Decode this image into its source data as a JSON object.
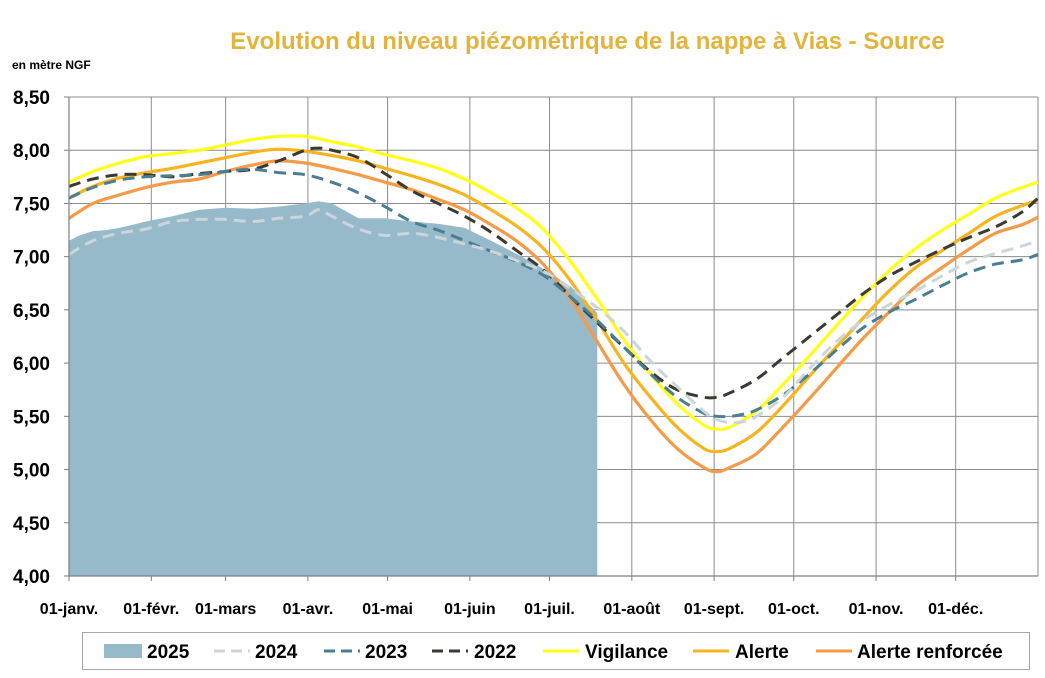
{
  "chart_data": {
    "type": "line",
    "title": "Evolution du niveau piézométrique  de la nappe à Vias  - Source",
    "ylabel": "en mètre NGF",
    "ylim": [
      4.0,
      8.5
    ],
    "y_ticks": [
      "4,00",
      "4,50",
      "5,00",
      "5,50",
      "6,00",
      "6,50",
      "7,00",
      "7,50",
      "8,00",
      "8,50"
    ],
    "x_ticks": [
      "01-janv.",
      "01-févr.",
      "01-mars",
      "01-avr.",
      "01-mai",
      "01-juin",
      "01-juil.",
      "01-août",
      "01-sept.",
      "01-oct.",
      "01-nov.",
      "01-déc."
    ],
    "x_tick_days": [
      1,
      32,
      60,
      91,
      121,
      152,
      182,
      213,
      244,
      274,
      305,
      335
    ],
    "xlim": [
      1,
      366
    ],
    "grid": true,
    "legend_position": "bottom",
    "colors": {
      "title": "#E3B33B",
      "s2025": "#97BACB",
      "s2024": "#CBD5DA",
      "s2023": "#4A7E92",
      "s2022": "#3C3A30",
      "vigilance": "#FFFF1A",
      "alerte": "#F7B41E",
      "alerte_renforcee": "#F59A46"
    },
    "series": [
      {
        "name": "2025",
        "style": "area",
        "color": "#97BACB",
        "x": [
          1,
          5,
          10,
          15,
          20,
          30,
          40,
          50,
          60,
          70,
          80,
          90,
          95,
          100,
          110,
          120,
          130,
          140,
          150,
          160,
          170,
          180,
          190,
          200
        ],
        "y": [
          7.15,
          7.2,
          7.24,
          7.25,
          7.27,
          7.33,
          7.38,
          7.44,
          7.46,
          7.45,
          7.47,
          7.5,
          7.52,
          7.5,
          7.36,
          7.36,
          7.33,
          7.31,
          7.27,
          7.15,
          7.02,
          6.88,
          6.72,
          6.47
        ]
      },
      {
        "name": "2024",
        "style": "dash",
        "color": "#CBD5DA",
        "x": [
          1,
          10,
          20,
          30,
          40,
          50,
          60,
          70,
          80,
          90,
          95,
          100,
          110,
          120,
          130,
          140,
          150,
          160,
          170,
          180,
          190,
          200,
          210,
          220,
          230,
          240,
          245,
          250,
          255,
          260,
          270,
          280,
          290,
          300,
          310,
          320,
          330,
          340,
          350,
          360,
          366
        ],
        "y": [
          7.02,
          7.15,
          7.22,
          7.26,
          7.33,
          7.35,
          7.35,
          7.33,
          7.36,
          7.38,
          7.44,
          7.38,
          7.26,
          7.2,
          7.22,
          7.18,
          7.12,
          7.05,
          6.96,
          6.86,
          6.7,
          6.52,
          6.3,
          6.02,
          5.78,
          5.55,
          5.47,
          5.44,
          5.45,
          5.5,
          5.68,
          5.95,
          6.2,
          6.4,
          6.55,
          6.68,
          6.82,
          6.95,
          7.03,
          7.1,
          7.15
        ]
      },
      {
        "name": "2023",
        "style": "dash",
        "color": "#4A7E92",
        "x": [
          1,
          10,
          20,
          30,
          40,
          50,
          60,
          70,
          80,
          90,
          100,
          110,
          120,
          130,
          140,
          150,
          160,
          170,
          180,
          190,
          200,
          210,
          220,
          230,
          240,
          245,
          250,
          255,
          260,
          270,
          280,
          290,
          300,
          310,
          320,
          330,
          340,
          350,
          360,
          366
        ],
        "y": [
          7.55,
          7.65,
          7.72,
          7.75,
          7.76,
          7.77,
          7.8,
          7.82,
          7.79,
          7.77,
          7.7,
          7.6,
          7.47,
          7.33,
          7.25,
          7.15,
          7.05,
          6.95,
          6.82,
          6.62,
          6.4,
          6.15,
          5.9,
          5.68,
          5.53,
          5.5,
          5.5,
          5.52,
          5.56,
          5.7,
          5.9,
          6.12,
          6.33,
          6.48,
          6.6,
          6.73,
          6.85,
          6.93,
          6.97,
          7.02
        ]
      },
      {
        "name": "2022",
        "style": "dash",
        "color": "#3C3A30",
        "x": [
          1,
          10,
          20,
          30,
          40,
          50,
          60,
          70,
          80,
          90,
          95,
          100,
          110,
          120,
          130,
          140,
          150,
          160,
          170,
          180,
          190,
          200,
          210,
          220,
          230,
          240,
          245,
          250,
          260,
          270,
          280,
          290,
          300,
          310,
          320,
          330,
          340,
          350,
          360,
          366
        ],
        "y": [
          7.66,
          7.73,
          7.77,
          7.77,
          7.75,
          7.78,
          7.8,
          7.82,
          7.9,
          8.0,
          8.02,
          8.0,
          7.93,
          7.78,
          7.62,
          7.5,
          7.38,
          7.23,
          7.05,
          6.87,
          6.62,
          6.38,
          6.15,
          5.92,
          5.75,
          5.68,
          5.68,
          5.72,
          5.85,
          6.05,
          6.25,
          6.45,
          6.65,
          6.82,
          6.95,
          7.07,
          7.18,
          7.28,
          7.42,
          7.55
        ]
      },
      {
        "name": "Vigilance",
        "style": "solid",
        "color": "#FFFF1A",
        "x": [
          1,
          10,
          20,
          30,
          40,
          50,
          60,
          70,
          80,
          90,
          100,
          110,
          120,
          130,
          140,
          150,
          160,
          170,
          180,
          190,
          200,
          210,
          220,
          230,
          240,
          245,
          250,
          260,
          270,
          280,
          290,
          300,
          310,
          320,
          330,
          340,
          350,
          360,
          366
        ],
        "y": [
          7.7,
          7.8,
          7.88,
          7.94,
          7.97,
          8.0,
          8.05,
          8.1,
          8.13,
          8.13,
          8.08,
          8.03,
          7.96,
          7.9,
          7.83,
          7.73,
          7.6,
          7.45,
          7.25,
          6.95,
          6.6,
          6.22,
          5.9,
          5.62,
          5.42,
          5.38,
          5.4,
          5.55,
          5.8,
          6.07,
          6.35,
          6.62,
          6.87,
          7.08,
          7.25,
          7.4,
          7.55,
          7.65,
          7.7
        ]
      },
      {
        "name": "Alerte",
        "style": "solid",
        "color": "#F7B41E",
        "x": [
          1,
          10,
          20,
          30,
          40,
          50,
          60,
          70,
          80,
          90,
          100,
          110,
          120,
          130,
          140,
          150,
          160,
          170,
          180,
          190,
          200,
          210,
          220,
          230,
          240,
          245,
          250,
          260,
          270,
          280,
          290,
          300,
          310,
          320,
          330,
          340,
          350,
          360,
          366
        ],
        "y": [
          7.55,
          7.66,
          7.74,
          7.79,
          7.83,
          7.88,
          7.93,
          7.98,
          8.01,
          7.99,
          7.95,
          7.9,
          7.83,
          7.76,
          7.68,
          7.58,
          7.44,
          7.28,
          7.07,
          6.77,
          6.4,
          6.0,
          5.68,
          5.4,
          5.2,
          5.17,
          5.2,
          5.35,
          5.6,
          5.88,
          6.15,
          6.42,
          6.68,
          6.9,
          7.06,
          7.22,
          7.38,
          7.48,
          7.53
        ]
      },
      {
        "name": "Alerte renforcée",
        "style": "solid",
        "color": "#F59A46",
        "x": [
          1,
          10,
          20,
          30,
          40,
          50,
          60,
          70,
          80,
          90,
          100,
          110,
          120,
          130,
          140,
          150,
          160,
          170,
          180,
          190,
          200,
          210,
          220,
          230,
          240,
          245,
          250,
          260,
          270,
          280,
          290,
          300,
          310,
          320,
          330,
          340,
          350,
          360,
          366
        ],
        "y": [
          7.36,
          7.5,
          7.58,
          7.65,
          7.7,
          7.73,
          7.8,
          7.86,
          7.9,
          7.88,
          7.83,
          7.77,
          7.7,
          7.63,
          7.54,
          7.44,
          7.3,
          7.14,
          6.92,
          6.6,
          6.2,
          5.8,
          5.47,
          5.2,
          5.02,
          4.98,
          5.02,
          5.15,
          5.4,
          5.67,
          5.95,
          6.23,
          6.48,
          6.72,
          6.9,
          7.07,
          7.22,
          7.3,
          7.37
        ]
      }
    ]
  }
}
